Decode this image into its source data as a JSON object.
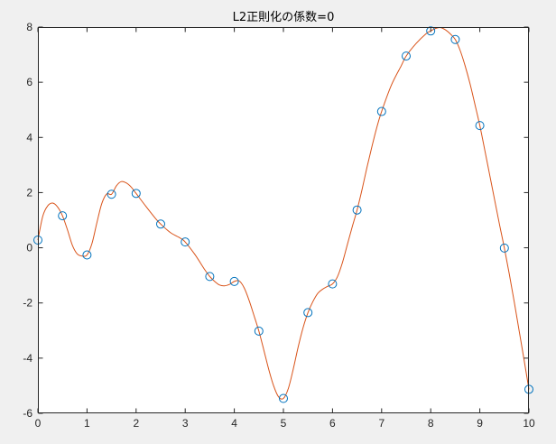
{
  "chart_data": {
    "type": "line",
    "title": "L2正則化の係数=0",
    "xlabel": "",
    "ylabel": "",
    "xlim": [
      0,
      10
    ],
    "ylim": [
      -6,
      8
    ],
    "xticks": [
      0,
      1,
      2,
      3,
      4,
      5,
      6,
      7,
      8,
      9,
      10
    ],
    "yticks": [
      -6,
      -4,
      -2,
      0,
      2,
      4,
      6,
      8
    ],
    "grid": false,
    "legend": "none",
    "series": [
      {
        "kind": "scatter-markers",
        "color": "#0072bd",
        "marker": "circle-open",
        "x": [
          0,
          0.5,
          1,
          1.5,
          2,
          2.5,
          3,
          3.5,
          4,
          4.5,
          5,
          5.5,
          6,
          6.5,
          7,
          7.5,
          8,
          8.5,
          9,
          9.5,
          10
        ],
        "y": [
          0.28,
          1.16,
          -0.26,
          1.94,
          1.97,
          0.86,
          0.21,
          -1.04,
          -1.22,
          -3.02,
          -5.46,
          -2.35,
          -1.31,
          1.37,
          4.94,
          6.95,
          7.86,
          7.55,
          4.43,
          -0.01,
          -5.13
        ]
      },
      {
        "kind": "fitted-curve",
        "color": "#d95319",
        "x": [
          0,
          0.1,
          0.2,
          0.3,
          0.4,
          0.5,
          0.6,
          0.7,
          0.8,
          0.9,
          1.0,
          1.1,
          1.2,
          1.3,
          1.4,
          1.5,
          1.6,
          1.7,
          1.8,
          1.9,
          2.0,
          2.2,
          2.4,
          2.5,
          2.7,
          2.9,
          3.0,
          3.2,
          3.4,
          3.5,
          3.6,
          3.7,
          3.8,
          3.9,
          4.0,
          4.1,
          4.2,
          4.3,
          4.4,
          4.5,
          4.6,
          4.7,
          4.8,
          4.9,
          5.0,
          5.1,
          5.2,
          5.3,
          5.4,
          5.5,
          5.6,
          5.7,
          5.8,
          5.9,
          6.0,
          6.1,
          6.2,
          6.3,
          6.4,
          6.5,
          6.6,
          6.7,
          6.8,
          6.9,
          7.0,
          7.2,
          7.4,
          7.5,
          7.7,
          7.9,
          8.0,
          8.1,
          8.2,
          8.3,
          8.4,
          8.5,
          8.6,
          8.7,
          8.8,
          8.9,
          9.0,
          9.1,
          9.2,
          9.3,
          9.4,
          9.5,
          9.6,
          9.7,
          9.8,
          9.9,
          10.0
        ],
        "y": [
          0.28,
          1.15,
          1.52,
          1.62,
          1.48,
          1.16,
          0.66,
          0.1,
          -0.22,
          -0.3,
          -0.26,
          0.15,
          0.9,
          1.6,
          1.95,
          1.94,
          2.25,
          2.4,
          2.35,
          2.2,
          1.97,
          1.5,
          1.05,
          0.86,
          0.55,
          0.35,
          0.21,
          -0.25,
          -0.8,
          -1.04,
          -1.22,
          -1.35,
          -1.38,
          -1.33,
          -1.22,
          -1.2,
          -1.45,
          -1.9,
          -2.45,
          -3.02,
          -3.7,
          -4.4,
          -5.0,
          -5.4,
          -5.46,
          -5.1,
          -4.4,
          -3.6,
          -2.9,
          -2.35,
          -1.95,
          -1.65,
          -1.5,
          -1.4,
          -1.31,
          -1.05,
          -0.55,
          0.1,
          0.75,
          1.37,
          2.1,
          2.9,
          3.65,
          4.35,
          4.94,
          5.9,
          6.6,
          6.95,
          7.4,
          7.75,
          7.86,
          7.95,
          7.98,
          7.9,
          7.75,
          7.55,
          7.15,
          6.6,
          5.95,
          5.2,
          4.43,
          3.55,
          2.65,
          1.75,
          0.85,
          -0.01,
          -0.95,
          -1.95,
          -3.0,
          -4.05,
          -5.13
        ]
      }
    ]
  },
  "colors": {
    "figure_bg": "#f0f0f0",
    "axes_bg": "#ffffff",
    "axis_line": "#262626"
  }
}
